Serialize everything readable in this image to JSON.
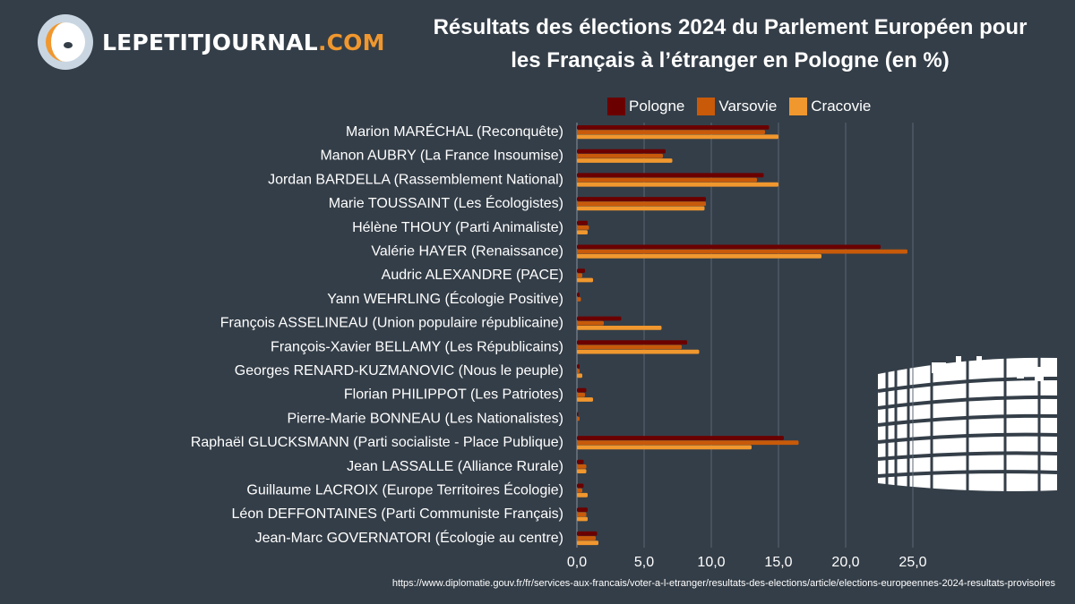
{
  "logo": {
    "name": "LEPETITJOURNAL",
    "suffix": ".COM"
  },
  "header": {
    "title_line1": "Résultats des élections 2024 du Parlement Européen pour",
    "title_line2": "les Français à l’étranger en Pologne (en %)"
  },
  "source": "https://www.diplomatie.gouv.fr/fr/services-aux-francais/voter-a-l-etranger/resultats-des-elections/article/elections-europeennes-2024-resultats-provisoires",
  "chart_data": {
    "type": "bar",
    "orientation": "horizontal",
    "title": "Résultats des élections 2024 du Parlement Européen pour les Français à l’étranger en Pologne (en %)",
    "xlim": [
      0,
      25
    ],
    "x_ticks": [
      "0,0",
      "5,0",
      "10,0",
      "15,0",
      "20,0",
      "25,0"
    ],
    "grid": true,
    "legend_position": "top",
    "categories": [
      "Marion MARÉCHAL (Reconquête)",
      "Manon AUBRY (La France Insoumise)",
      "Jordan BARDELLA (Rassemblement National)",
      "Marie TOUSSAINT (Les Écologistes)",
      "Hélène THOUY (Parti Animaliste)",
      "Valérie HAYER (Renaissance)",
      "Audric ALEXANDRE (PACE)",
      "Yann WEHRLING (Écologie Positive)",
      "François ASSELINEAU (Union populaire républicaine)",
      "François-Xavier BELLAMY (Les Républicains)",
      "Georges RENARD-KUZMANOVIC (Nous le peuple)",
      "Florian PHILIPPOT (Les Patriotes)",
      "Pierre-Marie BONNEAU (Les Nationalistes)",
      "Raphaël GLUCKSMANN (Parti socialiste - Place Publique)",
      "Jean LASSALLE (Alliance Rurale)",
      "Guillaume LACROIX (Europe Territoires Écologie)",
      "Léon DEFFONTAINES (Parti Communiste Français)",
      "Jean-Marc GOVERNATORI (Écologie au centre)"
    ],
    "series": [
      {
        "name": "Pologne",
        "color": "#6b0000",
        "values": [
          14.3,
          6.6,
          13.9,
          9.6,
          0.8,
          22.6,
          0.6,
          0.2,
          3.3,
          8.2,
          0.2,
          0.7,
          0.1,
          15.4,
          0.5,
          0.5,
          0.8,
          1.5
        ]
      },
      {
        "name": "Varsovie",
        "color": "#c85a0a",
        "values": [
          14.0,
          6.4,
          13.4,
          9.6,
          0.9,
          24.6,
          0.4,
          0.3,
          2.0,
          7.8,
          0.2,
          0.6,
          0.2,
          16.5,
          0.7,
          0.4,
          0.7,
          1.4
        ]
      },
      {
        "name": "Cracovie",
        "color": "#f0972e",
        "values": [
          15.0,
          7.1,
          15.0,
          9.5,
          0.8,
          18.2,
          1.2,
          0.0,
          6.3,
          9.1,
          0.4,
          1.2,
          0.0,
          13.0,
          0.7,
          0.8,
          0.8,
          1.6
        ]
      }
    ]
  },
  "icons": {
    "logo": "smiley-mascot-icon",
    "decoration": "european-parliament-building-icon"
  }
}
